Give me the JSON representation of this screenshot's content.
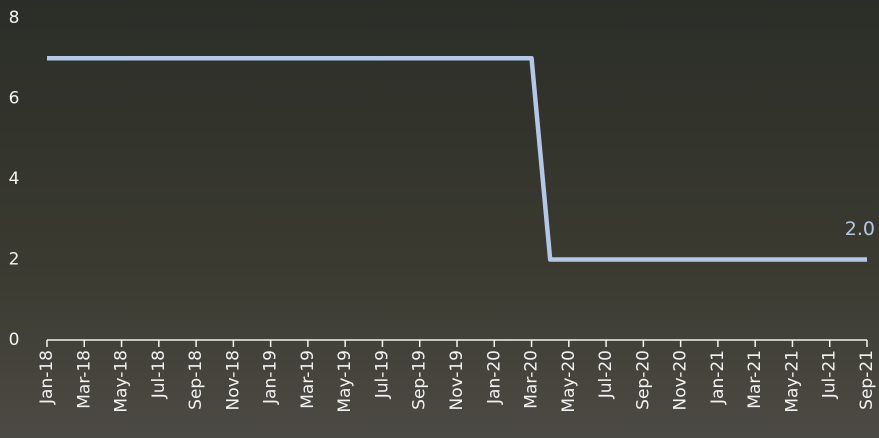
{
  "chart_data": {
    "type": "line",
    "categories": [
      "Jan-18",
      null,
      "Mar-18",
      null,
      "May-18",
      null,
      "Jul-18",
      null,
      "Sep-18",
      null,
      "Nov-18",
      null,
      "Jan-19",
      null,
      "Mar-19",
      null,
      "May-19",
      null,
      "Jul-19",
      null,
      "Sep-19",
      null,
      "Nov-19",
      null,
      "Jan-20",
      null,
      "Mar-20",
      null,
      "May-20",
      null,
      "Jul-20",
      null,
      "Sep-20",
      null,
      "Nov-20",
      null,
      "Jan-21",
      null,
      "Mar-21",
      null,
      "May-21",
      null,
      "Jul-21",
      null,
      "Sep-21"
    ],
    "values": [
      7,
      7,
      7,
      7,
      7,
      7,
      7,
      7,
      7,
      7,
      7,
      7,
      7,
      7,
      7,
      7,
      7,
      7,
      7,
      7,
      7,
      7,
      7,
      7,
      7,
      7,
      7,
      2,
      2,
      2,
      2,
      2,
      2,
      2,
      2,
      2,
      2,
      2,
      2,
      2,
      2,
      2,
      2,
      2,
      2
    ],
    "value_labels": [
      null,
      null,
      null,
      null,
      null,
      null,
      null,
      null,
      null,
      null,
      null,
      null,
      null,
      null,
      null,
      null,
      null,
      null,
      null,
      null,
      null,
      null,
      null,
      null,
      null,
      null,
      null,
      null,
      null,
      null,
      null,
      null,
      null,
      null,
      null,
      null,
      null,
      null,
      null,
      null,
      null,
      null,
      null,
      null,
      "2.0"
    ],
    "color": "#b4c7e7",
    "ylim": [
      0,
      8
    ],
    "yticks": [
      0,
      2,
      4,
      6,
      8
    ],
    "grid": false
  }
}
